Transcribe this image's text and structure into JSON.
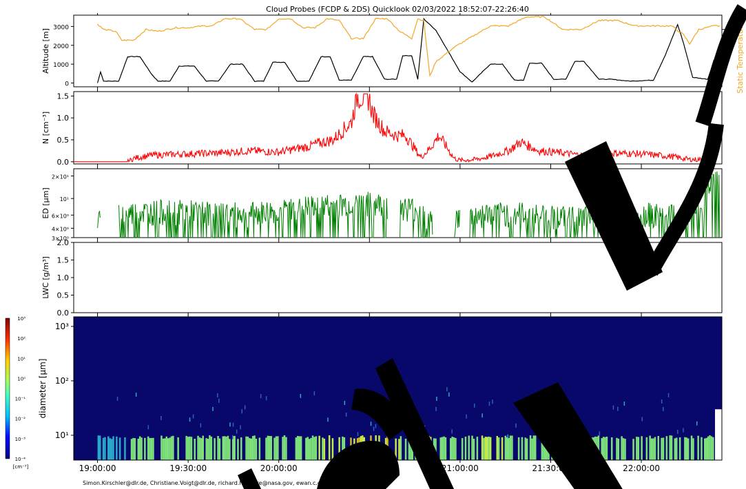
{
  "title": "Cloud Probes (FCDP & 2DS) Quicklook 02/03/2022 18:52:07-22:26:40",
  "footer": "Simon.Kirschler@dlr.de, Christiane.Voigt@dlr.de, richard.h.moore@nasa.gov, ewan.c.crosbie@nasa.gov",
  "colors": {
    "altitude": "#000000",
    "temperature": "#f5a623",
    "number": "#ff0000",
    "ed": "#008000",
    "spectrum_bg": "#08086b",
    "watermark": "#000000"
  },
  "x_ticks": [
    "19:00:00",
    "19:30:00",
    "20:00:00",
    "20:30:00",
    "21:00:00",
    "21:30:00",
    "22:00:00"
  ],
  "chart_data": [
    {
      "type": "line",
      "panel": "altitude",
      "title": "Cloud Probes (FCDP & 2DS) Quicklook 02/03/2022 18:52:07-22:26:40",
      "xlabel": "",
      "ylabel": "Altitude [m]",
      "y2label": "Static Temperatur [°C]",
      "xlim": [
        "18:52:07",
        "22:26:40"
      ],
      "ylim": [
        -200,
        3600
      ],
      "y2lim": [
        -22,
        18
      ],
      "yticks": [
        "0",
        "1000",
        "2000",
        "3000"
      ],
      "y2ticks": [
        "0",
        "10"
      ],
      "series": [
        {
          "name": "Altitude",
          "axis": "left",
          "x": [
            "19:00",
            "19:01",
            "19:02",
            "19:07",
            "19:10",
            "19:14",
            "19:18",
            "19:20",
            "19:24",
            "19:27",
            "19:32",
            "19:36",
            "19:40",
            "19:44",
            "19:48",
            "19:52",
            "19:55",
            "19:58",
            "20:02",
            "20:06",
            "20:10",
            "20:14",
            "20:17",
            "20:20",
            "20:24",
            "20:28",
            "20:31",
            "20:35",
            "20:39",
            "20:41",
            "20:44",
            "20:46",
            "20:48",
            "20:52",
            "20:56",
            "21:00",
            "21:04",
            "21:10",
            "21:14",
            "21:18",
            "21:21",
            "21:23",
            "21:27",
            "21:31",
            "21:35",
            "21:38",
            "21:41",
            "21:46",
            "21:50",
            "21:56",
            "22:04",
            "22:08",
            "22:12",
            "22:14",
            "22:17",
            "22:22",
            "22:24",
            "22:26"
          ],
          "y": [
            0,
            600,
            100,
            100,
            1400,
            1400,
            450,
            100,
            100,
            900,
            900,
            100,
            100,
            1000,
            1000,
            100,
            100,
            1100,
            1100,
            100,
            100,
            1400,
            1400,
            150,
            150,
            1400,
            1400,
            200,
            200,
            1450,
            1450,
            200,
            3400,
            2800,
            1700,
            600,
            50,
            1000,
            1000,
            150,
            150,
            1050,
            1050,
            200,
            200,
            1150,
            1150,
            200,
            200,
            100,
            150,
            1500,
            3100,
            2100,
            300,
            200,
            1200,
            1100
          ]
        },
        {
          "name": "Static Temperatur",
          "axis": "right",
          "x": [
            "19:00",
            "19:02",
            "19:06",
            "19:08",
            "19:12",
            "19:16",
            "19:20",
            "19:26",
            "19:30",
            "19:35",
            "19:38",
            "19:42",
            "19:47",
            "19:52",
            "19:56",
            "20:00",
            "20:04",
            "20:08",
            "20:12",
            "20:16",
            "20:20",
            "20:24",
            "20:28",
            "20:32",
            "20:36",
            "20:40",
            "20:44",
            "20:46",
            "20:48",
            "20:50",
            "20:52",
            "20:58",
            "21:04",
            "21:10",
            "21:16",
            "21:22",
            "21:28",
            "21:34",
            "21:40",
            "21:46",
            "21:52",
            "21:58",
            "22:04",
            "22:10",
            "22:14",
            "22:16",
            "22:19",
            "22:24",
            "22:26"
          ],
          "y": [
            13,
            10,
            9,
            4,
            4,
            10,
            9,
            11,
            11,
            12,
            12,
            16,
            16,
            10,
            10,
            16,
            16,
            11,
            11,
            16,
            15,
            5,
            5,
            16,
            16,
            9,
            5,
            16,
            15,
            -16,
            -8,
            0,
            6,
            12,
            12,
            17,
            17,
            10,
            10,
            15,
            15,
            12,
            12,
            12,
            7,
            2,
            10,
            12,
            12
          ]
        }
      ]
    },
    {
      "type": "line",
      "panel": "number",
      "xlabel": "",
      "ylabel": "N [cm⁻³]",
      "ylim": [
        -0.05,
        1.6
      ],
      "yticks": [
        "0.0",
        "0.5",
        "1.0",
        "1.5"
      ],
      "series": [
        {
          "name": "N",
          "x": [
            "18:53",
            "19:10",
            "19:12",
            "19:18",
            "19:30",
            "19:40",
            "19:50",
            "20:00",
            "20:10",
            "20:12",
            "20:18",
            "20:24",
            "20:26",
            "20:30",
            "20:31",
            "20:35",
            "20:39",
            "20:42",
            "20:47",
            "20:50",
            "20:53",
            "20:58",
            "21:00",
            "21:05",
            "21:10",
            "21:16",
            "21:20",
            "21:26",
            "21:34",
            "21:40",
            "21:50",
            "22:00",
            "22:10",
            "22:16",
            "22:20",
            "22:24"
          ],
          "y": [
            0.0,
            0.0,
            0.08,
            0.15,
            0.18,
            0.2,
            0.25,
            0.22,
            0.35,
            0.4,
            0.5,
            0.9,
            1.5,
            1.45,
            1.1,
            0.7,
            0.6,
            0.6,
            0.1,
            0.3,
            0.6,
            0.08,
            0.03,
            0.05,
            0.12,
            0.25,
            0.45,
            0.25,
            0.2,
            0.15,
            0.2,
            0.18,
            0.12,
            0.05,
            0.05,
            0.05
          ]
        }
      ]
    },
    {
      "type": "line",
      "panel": "effective_diameter",
      "xlabel": "",
      "ylabel": "ED [μm]",
      "yscale": "log",
      "ylim": [
        3,
        25
      ],
      "yticks": [
        "3×10⁰",
        "4×10⁰",
        "6×10⁰",
        "10¹",
        "2×10¹"
      ],
      "series": [
        {
          "name": "ED",
          "x": [
            "19:00",
            "19:10",
            "19:20",
            "19:30",
            "19:40",
            "19:50",
            "20:00",
            "20:10",
            "20:20",
            "20:30",
            "20:40",
            "20:45",
            "20:50",
            "21:00",
            "21:10",
            "21:20",
            "21:30",
            "21:40",
            "21:50",
            "22:00",
            "22:10",
            "22:20",
            "22:24"
          ],
          "y": [
            5.0,
            6.5,
            7.0,
            7.0,
            6.5,
            6.5,
            7.0,
            8.0,
            8.5,
            9.0,
            8.0,
            7.5,
            5.0,
            5.5,
            6.5,
            6.5,
            6.0,
            5.5,
            6.5,
            6.5,
            6.0,
            7.0,
            20.0
          ]
        }
      ]
    },
    {
      "type": "line",
      "panel": "lwc",
      "xlabel": "",
      "ylabel": "LWC [g/m³]",
      "ylim": [
        0.0,
        2.0
      ],
      "yticks": [
        "0.0",
        "0.5",
        "1.0",
        "1.5",
        "2.0"
      ],
      "series": []
    },
    {
      "type": "heatmap",
      "panel": "size_distribution",
      "xlabel": "",
      "ylabel": "diameter [μm]",
      "yscale": "log",
      "ylim": [
        3.5,
        1500
      ],
      "yticks": [
        "10¹",
        "10²",
        "10³"
      ],
      "colorbar": {
        "label": "[cm⁻³]",
        "scale": "log",
        "range": [
          0.0001,
          1000
        ],
        "ticks": [
          "10³",
          "10²",
          "10¹",
          "10⁰",
          "10⁻¹",
          "10⁻²",
          "10⁻³",
          "10⁻⁴"
        ]
      },
      "description_of_high_values": [
        {
          "x_start": "20:13",
          "x_end": "20:21",
          "y_min": 4,
          "y_max": 10,
          "value": 1
        },
        {
          "x_start": "20:22",
          "x_end": "20:40",
          "y_min": 4,
          "y_max": 10,
          "value": 10
        },
        {
          "x_start": "20:45",
          "x_end": "20:51",
          "y_min": 4,
          "y_max": 10,
          "value": 1
        },
        {
          "x_start": "21:05",
          "x_end": "21:14",
          "y_min": 4,
          "y_max": 10,
          "value": 1
        }
      ]
    }
  ]
}
